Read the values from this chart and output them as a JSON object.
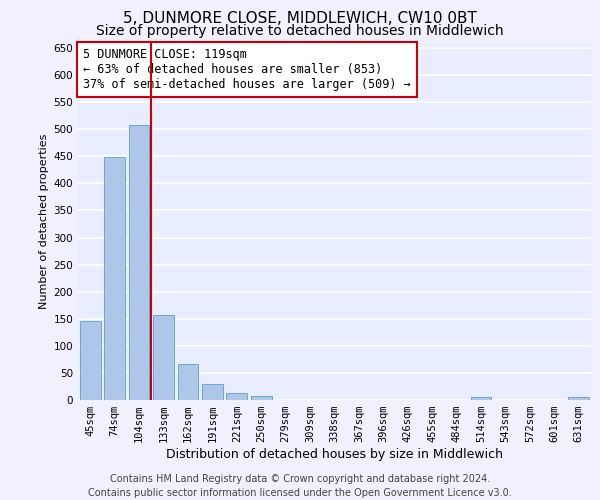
{
  "title_line1": "5, DUNMORE CLOSE, MIDDLEWICH, CW10 0BT",
  "title_line2": "Size of property relative to detached houses in Middlewich",
  "xlabel": "Distribution of detached houses by size in Middlewich",
  "ylabel": "Number of detached properties",
  "categories": [
    "45sqm",
    "74sqm",
    "104sqm",
    "133sqm",
    "162sqm",
    "191sqm",
    "221sqm",
    "250sqm",
    "279sqm",
    "309sqm",
    "338sqm",
    "367sqm",
    "396sqm",
    "426sqm",
    "455sqm",
    "484sqm",
    "514sqm",
    "543sqm",
    "572sqm",
    "601sqm",
    "631sqm"
  ],
  "values": [
    145,
    448,
    507,
    157,
    66,
    30,
    13,
    7,
    0,
    0,
    0,
    0,
    0,
    0,
    0,
    0,
    5,
    0,
    0,
    0,
    5
  ],
  "bar_color": "#aec6e8",
  "bar_edge_color": "#5a9fd4",
  "highlight_line_color": "#cc0000",
  "ylim": [
    0,
    660
  ],
  "yticks": [
    0,
    50,
    100,
    150,
    200,
    250,
    300,
    350,
    400,
    450,
    500,
    550,
    600,
    650
  ],
  "annotation_text": "5 DUNMORE CLOSE: 119sqm\n← 63% of detached houses are smaller (853)\n37% of semi-detached houses are larger (509) →",
  "annotation_box_color": "#ffffff",
  "annotation_box_edge": "#cc0000",
  "background_color": "#e8eeff",
  "fig_background_color": "#f0f0ff",
  "grid_color": "#ffffff",
  "footer_text": "Contains HM Land Registry data © Crown copyright and database right 2024.\nContains public sector information licensed under the Open Government Licence v3.0.",
  "title_fontsize": 11,
  "subtitle_fontsize": 10,
  "xlabel_fontsize": 9,
  "ylabel_fontsize": 8,
  "tick_fontsize": 7.5,
  "annotation_fontsize": 8.5,
  "footer_fontsize": 7
}
